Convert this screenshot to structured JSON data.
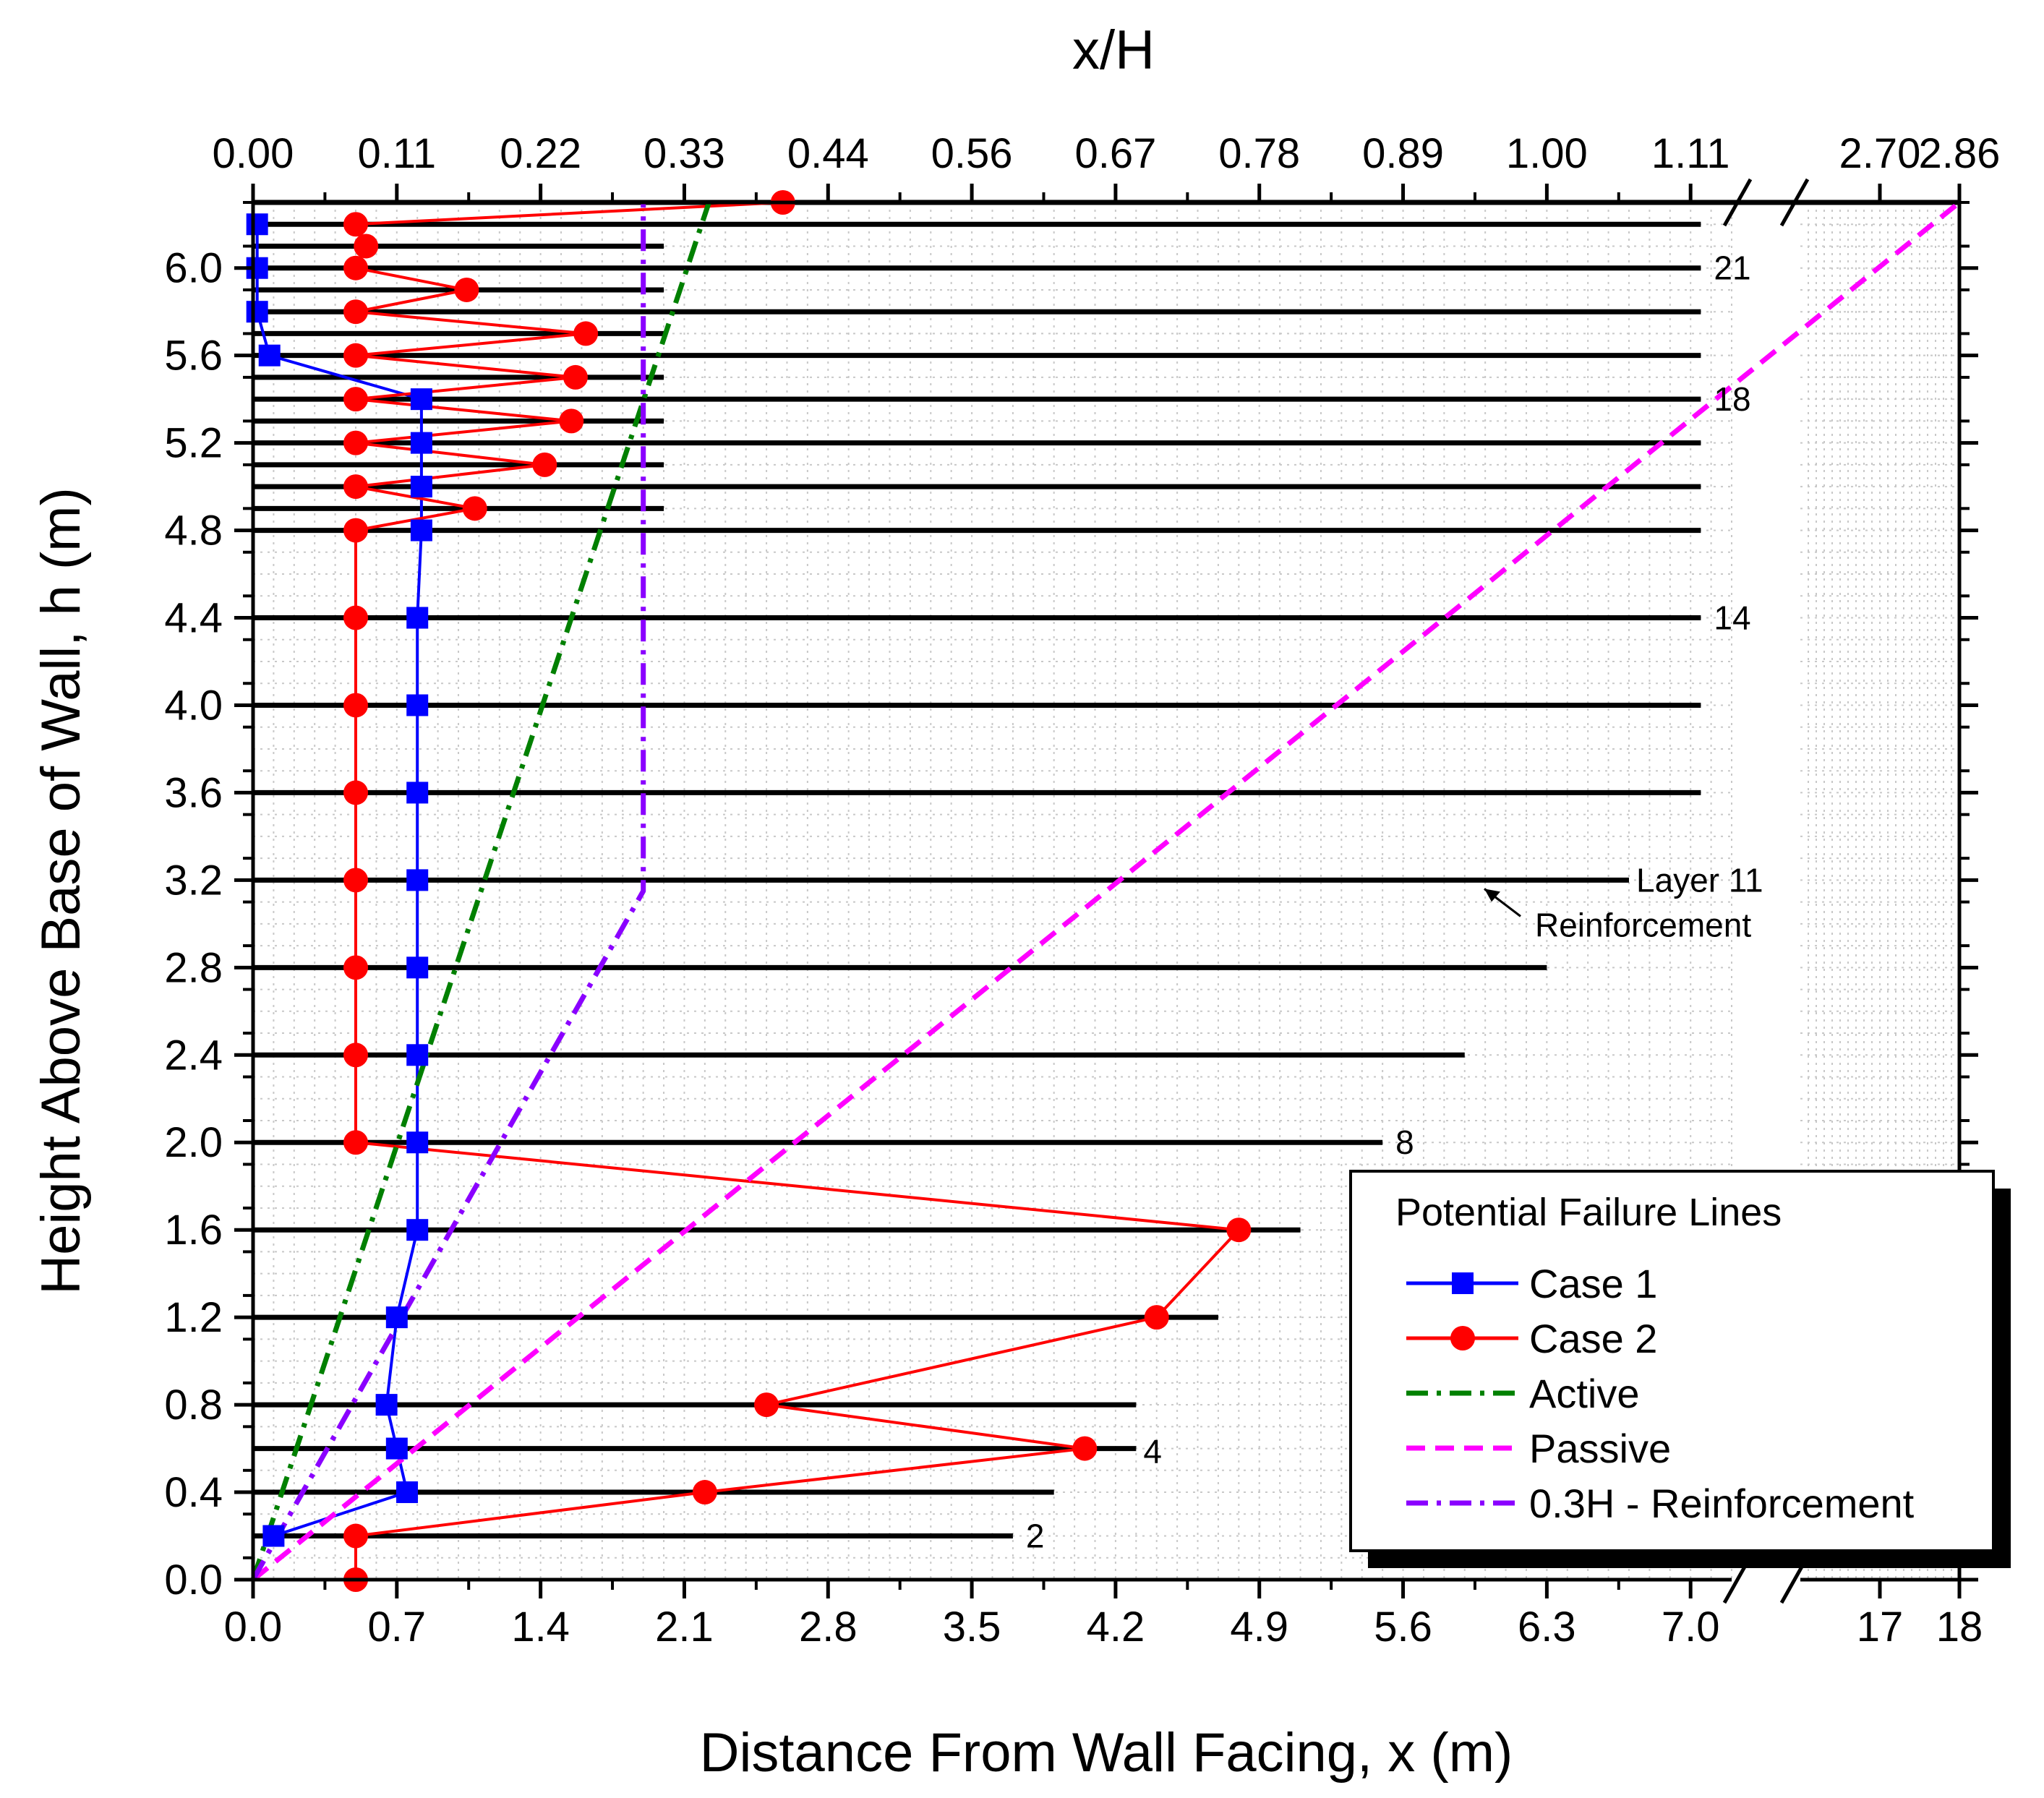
{
  "chart_data": {
    "type": "line",
    "xlabel": "Distance From Wall Facing, x (m)",
    "ylabel": "Height Above Base of Wall, h (m)",
    "top_xlabel": "x/H",
    "xlim": [
      0,
      18
    ],
    "ylim": [
      0,
      6.3
    ],
    "x_break": [
      7.2,
      16
    ],
    "grid": true,
    "x_ticks": [
      0.0,
      0.7,
      1.4,
      2.1,
      2.8,
      3.5,
      4.2,
      4.9,
      5.6,
      6.3,
      7.0,
      17,
      18
    ],
    "x_tick_labels": [
      "0.0",
      "0.7",
      "1.4",
      "2.1",
      "2.8",
      "3.5",
      "4.2",
      "4.9",
      "5.6",
      "6.3",
      "7.0",
      "17",
      "18"
    ],
    "top_ticks": [
      0.0,
      0.7,
      1.4,
      2.1,
      2.8,
      3.5,
      4.2,
      4.9,
      5.6,
      6.3,
      7.0,
      17,
      18
    ],
    "top_tick_labels": [
      "0.00",
      "0.11",
      "0.22",
      "0.33",
      "0.44",
      "0.56",
      "0.67",
      "0.78",
      "0.89",
      "1.00",
      "1.11",
      "2.70",
      "2.86"
    ],
    "y_ticks": [
      0.0,
      0.4,
      0.8,
      1.2,
      1.6,
      2.0,
      2.4,
      2.8,
      3.2,
      3.6,
      4.0,
      4.4,
      4.8,
      5.2,
      5.6,
      6.0
    ],
    "y_tick_labels": [
      "0.0",
      "0.4",
      "0.8",
      "1.2",
      "1.6",
      "2.0",
      "2.4",
      "2.8",
      "3.2",
      "3.6",
      "4.0",
      "4.4",
      "4.8",
      "5.2",
      "5.6",
      "6.0"
    ],
    "reinforcement": [
      {
        "h": 0.2,
        "length": 3.7
      },
      {
        "h": 0.4,
        "length": 3.9
      },
      {
        "h": 0.6,
        "length": 4.3
      },
      {
        "h": 0.8,
        "length": 4.3
      },
      {
        "h": 1.2,
        "length": 4.7
      },
      {
        "h": 1.6,
        "length": 5.1
      },
      {
        "h": 2.0,
        "length": 5.5
      },
      {
        "h": 2.4,
        "length": 5.9
      },
      {
        "h": 2.8,
        "length": 6.3
      },
      {
        "h": 3.2,
        "length": 6.7
      },
      {
        "h": 3.6,
        "length": 7.05
      },
      {
        "h": 4.0,
        "length": 7.05
      },
      {
        "h": 4.4,
        "length": 7.05
      },
      {
        "h": 4.8,
        "length": 7.05
      },
      {
        "h": 4.9,
        "length": 2.0
      },
      {
        "h": 5.0,
        "length": 7.05
      },
      {
        "h": 5.1,
        "length": 2.0
      },
      {
        "h": 5.2,
        "length": 7.05
      },
      {
        "h": 5.3,
        "length": 2.0
      },
      {
        "h": 5.4,
        "length": 7.05
      },
      {
        "h": 5.5,
        "length": 2.0
      },
      {
        "h": 5.6,
        "length": 7.05
      },
      {
        "h": 5.7,
        "length": 2.0
      },
      {
        "h": 5.8,
        "length": 7.05
      },
      {
        "h": 5.9,
        "length": 2.0
      },
      {
        "h": 6.0,
        "length": 7.05
      },
      {
        "h": 6.1,
        "length": 2.0
      },
      {
        "h": 6.2,
        "length": 7.05
      },
      {
        "h": 6.3,
        "length": 18
      }
    ],
    "series": [
      {
        "name": "Case 1",
        "color": "#0000ff",
        "marker": "square",
        "style": "solid",
        "points": [
          [
            0.1,
            0.2
          ],
          [
            0.75,
            0.4
          ],
          [
            0.7,
            0.6
          ],
          [
            0.65,
            0.8
          ],
          [
            0.7,
            1.2
          ],
          [
            0.8,
            1.6
          ],
          [
            0.8,
            2.0
          ],
          [
            0.8,
            2.4
          ],
          [
            0.8,
            2.8
          ],
          [
            0.8,
            3.2
          ],
          [
            0.8,
            3.6
          ],
          [
            0.8,
            4.0
          ],
          [
            0.8,
            4.4
          ],
          [
            0.82,
            4.8
          ],
          [
            0.82,
            5.0
          ],
          [
            0.82,
            5.2
          ],
          [
            0.82,
            5.4
          ],
          [
            0.08,
            5.6
          ],
          [
            0.02,
            5.8
          ],
          [
            0.02,
            6.0
          ],
          [
            0.02,
            6.2
          ]
        ]
      },
      {
        "name": "Case 2",
        "color": "#ff0000",
        "marker": "circle",
        "style": "solid",
        "points": [
          [
            0.5,
            0.0
          ],
          [
            0.5,
            0.2
          ],
          [
            2.2,
            0.4
          ],
          [
            4.05,
            0.6
          ],
          [
            2.5,
            0.8
          ],
          [
            4.4,
            1.2
          ],
          [
            4.8,
            1.6
          ],
          [
            0.5,
            2.0
          ],
          [
            0.5,
            2.4
          ],
          [
            0.5,
            2.8
          ],
          [
            0.5,
            3.2
          ],
          [
            0.5,
            3.6
          ],
          [
            0.5,
            4.0
          ],
          [
            0.5,
            4.4
          ],
          [
            0.5,
            4.8
          ],
          [
            1.08,
            4.9
          ],
          [
            0.5,
            5.0
          ],
          [
            1.42,
            5.1
          ],
          [
            0.5,
            5.2
          ],
          [
            1.55,
            5.3
          ],
          [
            0.5,
            5.4
          ],
          [
            1.57,
            5.5
          ],
          [
            0.5,
            5.6
          ],
          [
            1.62,
            5.7
          ],
          [
            0.5,
            5.8
          ],
          [
            1.04,
            5.9
          ],
          [
            0.5,
            6.0
          ],
          [
            0.55,
            6.1
          ],
          [
            0.5,
            6.2
          ],
          [
            2.58,
            6.3
          ]
        ]
      },
      {
        "name": "Active",
        "color": "#008000",
        "marker": "none",
        "style": "dash-dot",
        "points": [
          [
            0.0,
            0.0
          ],
          [
            2.22,
            6.3
          ]
        ]
      },
      {
        "name": "Passive",
        "color": "#ff00ff",
        "marker": "none",
        "style": "dash",
        "points": [
          [
            0.0,
            0.0
          ],
          [
            18.0,
            6.3
          ]
        ]
      },
      {
        "name": "0.3H - Reinforcement",
        "color": "#8a00ff",
        "marker": "none",
        "style": "dash-dot",
        "points": [
          [
            0.0,
            0.0
          ],
          [
            1.9,
            3.15
          ],
          [
            1.9,
            6.3
          ]
        ]
      }
    ],
    "annotations": [
      {
        "text": "21",
        "x": 7.05,
        "y": 6.0
      },
      {
        "text": "18",
        "x": 7.05,
        "y": 5.4
      },
      {
        "text": "14",
        "x": 7.05,
        "y": 4.4
      },
      {
        "text": "Layer 11",
        "x": 6.7,
        "y": 3.2
      },
      {
        "text": "Reinforcement",
        "x": 6.7,
        "y": 3.0
      },
      {
        "text": "8",
        "x": 5.5,
        "y": 2.0
      },
      {
        "text": "4",
        "x": 4.3,
        "y": 0.6
      },
      {
        "text": "2",
        "x": 3.7,
        "y": 0.2
      }
    ],
    "legend": {
      "title": "Potential Failure Lines",
      "position": "bottom-right"
    }
  }
}
